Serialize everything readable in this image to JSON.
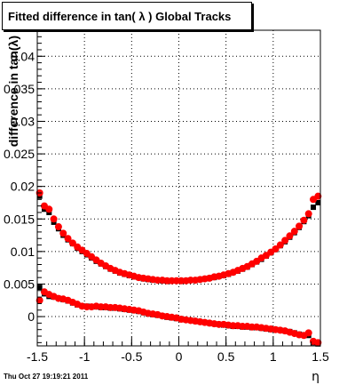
{
  "header": {
    "title": "Fitted difference in tan( λ )  Global Tracks"
  },
  "footer": {
    "date": "Thu Oct 27 19:19:21 2011"
  },
  "colors": {
    "series_black": "#000000",
    "series_red": "#ff0000",
    "grid": "#000000",
    "frame": "#000000"
  },
  "chart_data": {
    "type": "scatter",
    "title": "Fitted difference in tan( λ )  Global Tracks",
    "xlabel": "η",
    "ylabel": "difference in tan(λ)",
    "xlim": [
      -1.5,
      1.5
    ],
    "ylim": [
      -0.0045,
      0.044
    ],
    "xticks": [
      -1.5,
      -1,
      -0.5,
      0,
      0.5,
      1,
      1.5
    ],
    "xtick_labels": [
      "-1.5",
      "-1",
      "-0.5",
      "0",
      "0.5",
      "1",
      "1.5"
    ],
    "yticks": [
      0,
      0.005,
      0.01,
      0.015,
      0.02,
      0.025,
      0.03,
      0.035,
      0.04
    ],
    "ytick_labels": [
      "0",
      "0.005",
      "0.01",
      "0.015",
      "0.02",
      "0.025",
      "0.03",
      "0.035",
      "0.04"
    ],
    "grid": true,
    "x": [
      -1.475,
      -1.425,
      -1.375,
      -1.325,
      -1.275,
      -1.225,
      -1.175,
      -1.125,
      -1.075,
      -1.025,
      -0.975,
      -0.925,
      -0.875,
      -0.825,
      -0.775,
      -0.725,
      -0.675,
      -0.625,
      -0.575,
      -0.525,
      -0.475,
      -0.425,
      -0.375,
      -0.325,
      -0.275,
      -0.225,
      -0.175,
      -0.125,
      -0.075,
      -0.025,
      0.025,
      0.075,
      0.125,
      0.175,
      0.225,
      0.275,
      0.325,
      0.375,
      0.425,
      0.475,
      0.525,
      0.575,
      0.625,
      0.675,
      0.725,
      0.775,
      0.825,
      0.875,
      0.925,
      0.975,
      1.025,
      1.075,
      1.125,
      1.175,
      1.225,
      1.275,
      1.325,
      1.375,
      1.425,
      1.475
    ],
    "series": [
      {
        "color": "#000000",
        "values": [
          0.0185,
          0.0165,
          0.016,
          0.0145,
          0.0135,
          0.0125,
          0.0118,
          0.0112,
          0.0105,
          0.01,
          0.0095,
          0.009,
          0.0085,
          0.0081,
          0.0077,
          0.0073,
          0.007,
          0.0067,
          0.0065,
          0.0063,
          0.0061,
          0.006,
          0.0058,
          0.0057,
          0.0056,
          0.0056,
          0.0055,
          0.0055,
          0.0055,
          0.0055,
          0.0055,
          0.0055,
          0.0056,
          0.0056,
          0.0057,
          0.0058,
          0.0059,
          0.006,
          0.0062,
          0.0063,
          0.0065,
          0.0068,
          0.007,
          0.0073,
          0.0076,
          0.008,
          0.0084,
          0.0088,
          0.0093,
          0.0098,
          0.0103,
          0.0109,
          0.0115,
          0.0122,
          0.0129,
          0.0137,
          0.0146,
          0.0155,
          0.0168,
          0.0175
        ]
      },
      {
        "color": "#ff0000",
        "values": [
          0.019,
          0.017,
          0.0165,
          0.015,
          0.0138,
          0.0128,
          0.012,
          0.0113,
          0.0107,
          0.0102,
          0.0097,
          0.0092,
          0.0087,
          0.0082,
          0.0078,
          0.0074,
          0.0071,
          0.0068,
          0.0066,
          0.0064,
          0.0062,
          0.006,
          0.0059,
          0.0058,
          0.0057,
          0.0056,
          0.0056,
          0.0055,
          0.0055,
          0.0055,
          0.0055,
          0.0055,
          0.0056,
          0.0056,
          0.0057,
          0.0058,
          0.0059,
          0.0061,
          0.0062,
          0.0064,
          0.0066,
          0.0068,
          0.0071,
          0.0074,
          0.0077,
          0.0081,
          0.0085,
          0.009,
          0.0094,
          0.0099,
          0.0104,
          0.011,
          0.0117,
          0.0124,
          0.0131,
          0.0139,
          0.0148,
          0.0158,
          0.018,
          0.0185
        ]
      },
      {
        "color": "#000000",
        "values": [
          0.0045,
          0.0035,
          0.0031,
          0.003,
          0.0028,
          0.0026,
          0.0024,
          0.0021,
          0.0018,
          0.0016,
          0.0016,
          0.0015,
          0.0015,
          0.0014,
          0.0014,
          0.0013,
          0.0013,
          0.0012,
          0.0011,
          0.001,
          0.0009,
          0.0008,
          0.0006,
          0.0004,
          0.0003,
          0.0002,
          0.0001,
          -0.0001,
          -0.0002,
          -0.0003,
          -0.0004,
          -0.0005,
          -0.0006,
          -0.0007,
          -0.0008,
          -0.0009,
          -0.001,
          -0.0011,
          -0.0012,
          -0.0013,
          -0.0014,
          -0.0015,
          -0.0015,
          -0.0016,
          -0.0016,
          -0.0017,
          -0.0017,
          -0.0018,
          -0.0019,
          -0.002,
          -0.002,
          -0.0021,
          -0.0022,
          -0.0023,
          -0.0025,
          -0.0027,
          -0.0028,
          -0.0029,
          -0.004,
          -0.0042
        ]
      },
      {
        "color": "#ff0000",
        "values": [
          0.0025,
          0.0038,
          0.0034,
          0.0031,
          0.0028,
          0.0027,
          0.0025,
          0.0022,
          0.0019,
          0.0016,
          0.0015,
          0.0015,
          0.0016,
          0.0015,
          0.0015,
          0.0014,
          0.0014,
          0.0013,
          0.0012,
          0.0011,
          0.001,
          0.0009,
          0.0007,
          0.0005,
          0.0004,
          0.0003,
          0.0001,
          0.0,
          -0.0001,
          -0.0002,
          -0.0004,
          -0.0005,
          -0.0006,
          -0.0007,
          -0.0008,
          -0.0009,
          -0.001,
          -0.0011,
          -0.0012,
          -0.0012,
          -0.0013,
          -0.0014,
          -0.0014,
          -0.0015,
          -0.0015,
          -0.0016,
          -0.0016,
          -0.0017,
          -0.0018,
          -0.0019,
          -0.002,
          -0.0021,
          -0.0022,
          -0.0024,
          -0.0026,
          -0.0028,
          -0.0029,
          -0.0025,
          -0.0038,
          -0.004
        ]
      }
    ]
  }
}
